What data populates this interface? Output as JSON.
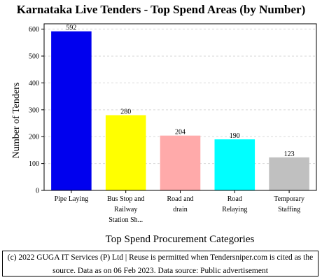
{
  "chart_data": {
    "type": "bar",
    "title": "Karnataka Live Tenders - Top Spend Areas (by Number)",
    "xlabel": "Top Spend Procurement Categories",
    "ylabel": "Number of Tenders",
    "ylim": [
      0,
      620
    ],
    "yticks": [
      0,
      100,
      200,
      300,
      400,
      500,
      600
    ],
    "grid": true,
    "categories": [
      [
        "Pipe Laying"
      ],
      [
        "Bus Stop and",
        "Railway",
        "Station Sh..."
      ],
      [
        "Road and",
        "drain"
      ],
      [
        "Road",
        "Relaying"
      ],
      [
        "Temporary",
        "Staffing"
      ]
    ],
    "values": [
      592,
      280,
      204,
      190,
      123
    ],
    "colors": [
      "#0000ee",
      "#ffff00",
      "#ffaaaa",
      "#00ffff",
      "#c0c0c0"
    ]
  },
  "footer": {
    "text": "(c) 2022 GUGA IT Services (P) Ltd | Reuse is permitted when Tendersniper.com is cited as the source. Data as on 06 Feb 2023. Data source: Public advertisement"
  }
}
